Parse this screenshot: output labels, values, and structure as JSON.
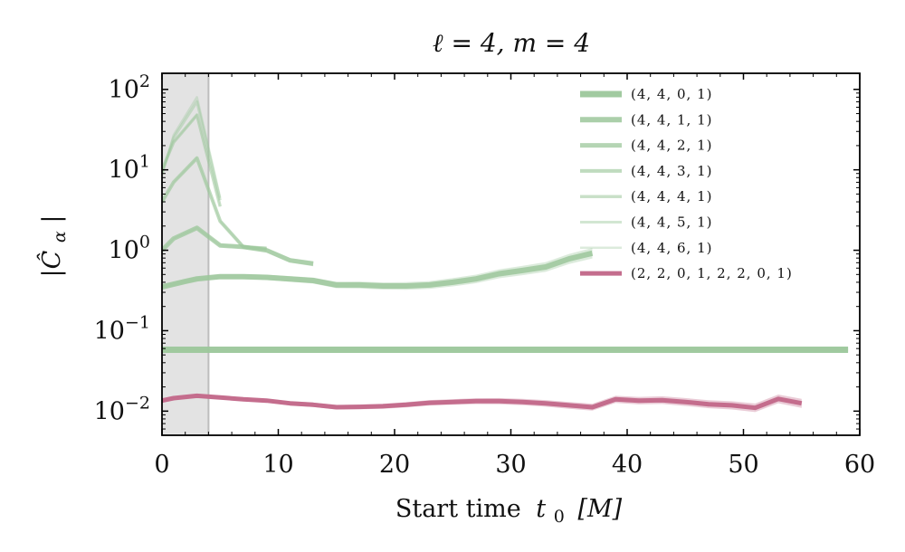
{
  "chart_data": {
    "type": "line",
    "title": "ℓ = 4, m = 4",
    "xlabel": "Start time",
    "xlabel_var": "t",
    "xlabel_sub": "0",
    "xlabel_unit": "[M]",
    "ylabel": "|Ĉ",
    "ylabel_sub": "α",
    "ylabel_end": "|",
    "xlim": [
      0,
      60
    ],
    "ylim_log10": [
      -2.3,
      2.2
    ],
    "x_ticks": [
      0,
      10,
      20,
      30,
      40,
      50,
      60
    ],
    "x_tick_labels": [
      "0",
      "10",
      "20",
      "30",
      "40",
      "50",
      "60"
    ],
    "y_ticks_exp": [
      -2,
      -1,
      0,
      1,
      2
    ],
    "y_tick_labels": [
      {
        "base": "10",
        "exp": "−2"
      },
      {
        "base": "10",
        "exp": "−1"
      },
      {
        "base": "10",
        "exp": "0"
      },
      {
        "base": "10",
        "exp": "1"
      },
      {
        "base": "10",
        "exp": "2"
      }
    ],
    "shaded_region": {
      "x0": 0,
      "x1": 4
    },
    "legend_position": "top-right",
    "series": [
      {
        "name": "(4, 4, 0, 1)",
        "color": "#9cc79b",
        "opacity": 0.95,
        "width": 7,
        "x": [
          0,
          5,
          10,
          15,
          20,
          25,
          30,
          35,
          40,
          45,
          50,
          55,
          59
        ],
        "y": [
          0.058,
          0.058,
          0.058,
          0.058,
          0.058,
          0.058,
          0.058,
          0.058,
          0.058,
          0.058,
          0.058,
          0.058,
          0.058
        ],
        "band": 0.04
      },
      {
        "name": "(4, 4, 1, 1)",
        "color": "#9cc79b",
        "opacity": 0.85,
        "width": 6,
        "x": [
          0,
          2,
          3,
          5,
          7,
          9,
          11,
          13,
          15,
          17,
          19,
          21,
          23,
          25,
          27,
          29,
          31,
          33,
          35,
          37
        ],
        "y": [
          0.35,
          0.41,
          0.44,
          0.47,
          0.47,
          0.46,
          0.44,
          0.42,
          0.37,
          0.37,
          0.36,
          0.36,
          0.37,
          0.4,
          0.44,
          0.51,
          0.56,
          0.62,
          0.78,
          0.92
        ],
        "band": 0.12
      },
      {
        "name": "(4, 4, 2, 1)",
        "color": "#9cc79b",
        "opacity": 0.75,
        "width": 5,
        "x": [
          0,
          1,
          3,
          5,
          7,
          9,
          11,
          13
        ],
        "y": [
          1.0,
          1.4,
          1.9,
          1.15,
          1.1,
          1.0,
          0.75,
          0.68
        ],
        "band": 0.06
      },
      {
        "name": "(4, 4, 3, 1)",
        "color": "#9cc79b",
        "opacity": 0.65,
        "width": 4,
        "x": [
          0,
          1,
          3,
          5,
          7,
          9
        ],
        "y": [
          4.0,
          7.0,
          14.0,
          2.3,
          1.1,
          1.05
        ],
        "band": 0.05
      },
      {
        "name": "(4, 4, 4, 1)",
        "color": "#9cc79b",
        "opacity": 0.55,
        "width": 3.5,
        "x": [
          0,
          1,
          3,
          5
        ],
        "y": [
          10.0,
          22.0,
          48.0,
          3.5
        ],
        "band": 0.04
      },
      {
        "name": "(4, 4, 5, 1)",
        "color": "#9cc79b",
        "opacity": 0.45,
        "width": 3,
        "x": [
          0,
          1,
          3,
          5
        ],
        "y": [
          9.0,
          25.0,
          70.0,
          4.2
        ],
        "band": 0.0
      },
      {
        "name": "(4, 4, 6, 1)",
        "color": "#9cc79b",
        "opacity": 0.35,
        "width": 2.5,
        "x": [
          0,
          1,
          3,
          5
        ],
        "y": [
          8.5,
          27.0,
          80.0,
          4.5
        ],
        "band": 0.0
      },
      {
        "name": "(2, 2, 0, 1, 2, 2, 0, 1)",
        "color": "#c46d8d",
        "opacity": 1.0,
        "width": 5,
        "x": [
          0,
          1,
          3,
          5,
          7,
          9,
          11,
          13,
          15,
          17,
          19,
          21,
          23,
          25,
          27,
          29,
          31,
          33,
          35,
          37,
          39,
          41,
          43,
          45,
          47,
          49,
          51,
          53,
          55
        ],
        "y": [
          0.0135,
          0.0145,
          0.0155,
          0.0148,
          0.014,
          0.0135,
          0.0125,
          0.012,
          0.0112,
          0.0113,
          0.0115,
          0.012,
          0.0127,
          0.013,
          0.0133,
          0.0133,
          0.013,
          0.0125,
          0.0118,
          0.0112,
          0.014,
          0.0135,
          0.0137,
          0.013,
          0.0122,
          0.0118,
          0.011,
          0.0142,
          0.0125
        ],
        "band": 0.1
      }
    ]
  }
}
